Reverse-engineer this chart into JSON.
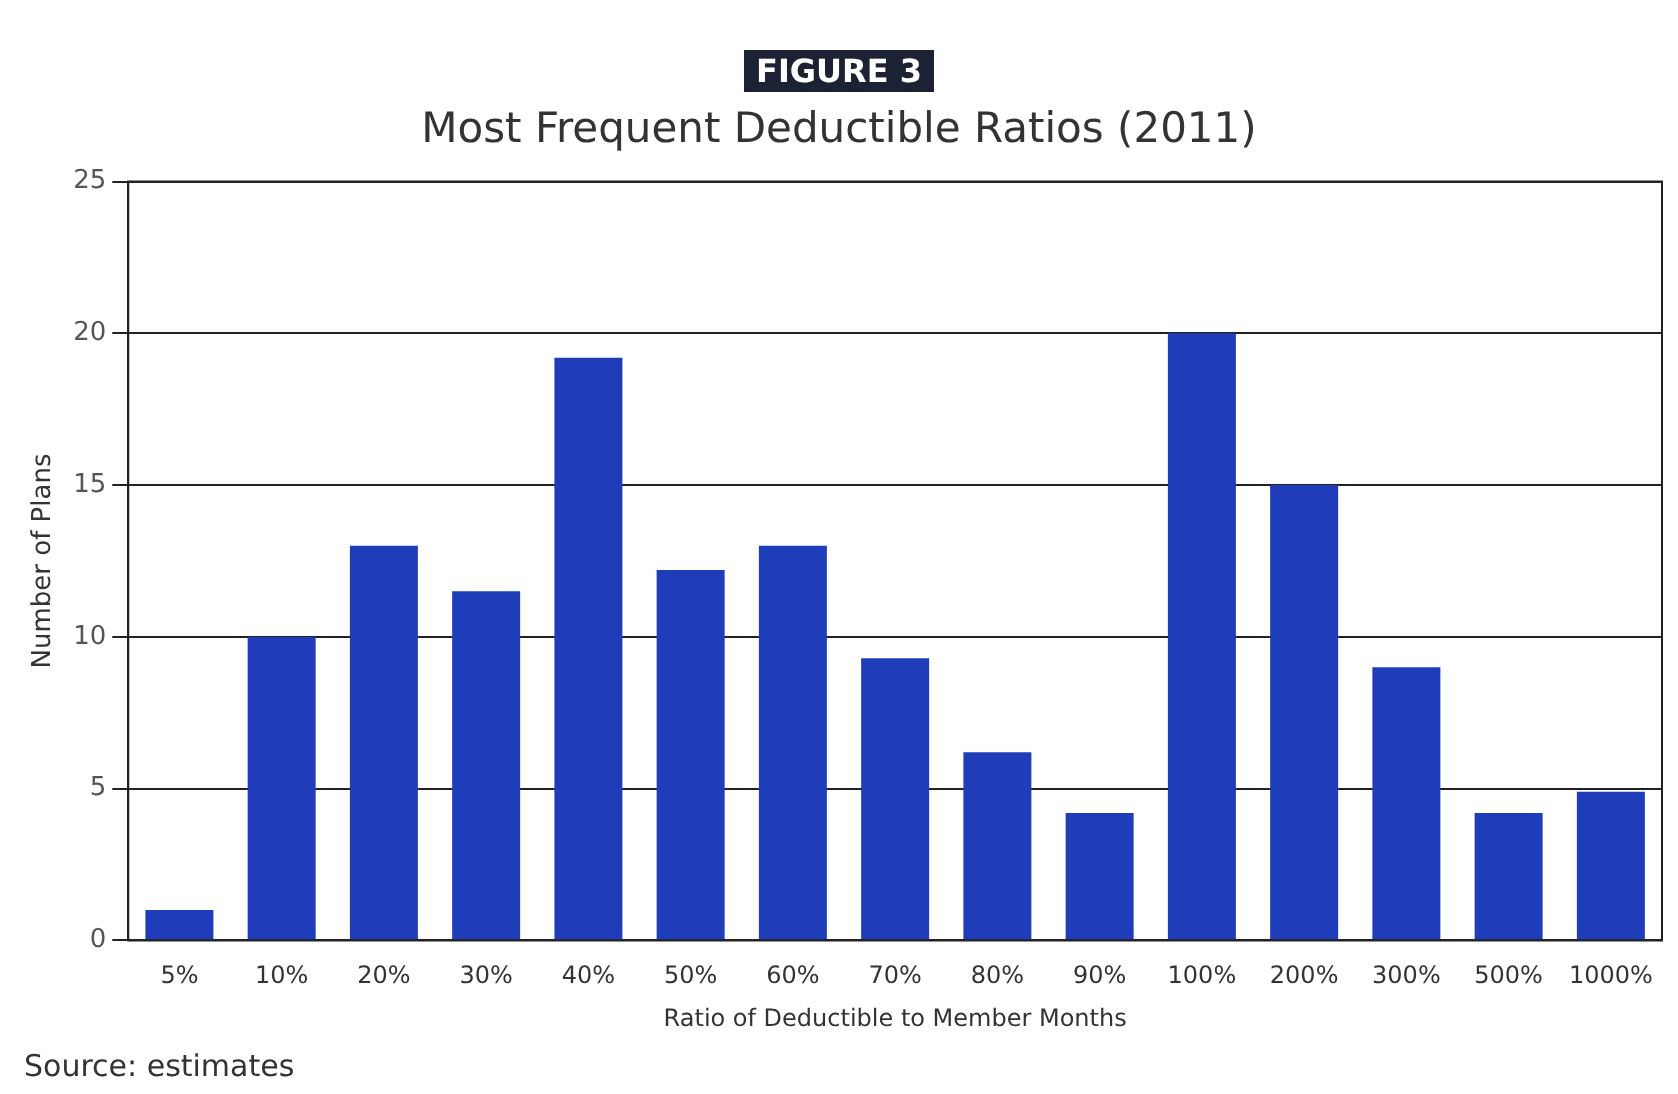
{
  "chart_data": {
    "type": "bar",
    "title": "Most Frequent Deductible Ratios (2011)",
    "xlabel": "Ratio of Deductible to Member Months",
    "ylabel": "Number of Plans",
    "annotations": [
      "FIGURE 3",
      "Source: estimates"
    ],
    "categories": [
      "5%",
      "10%",
      "20%",
      "30%",
      "40%",
      "50%",
      "60%",
      "70%",
      "80%",
      "90%",
      "100%",
      "200%",
      "300%",
      "500%",
      "1000%"
    ],
    "values": [
      1,
      10,
      13,
      11.5,
      19.2,
      12.2,
      13,
      9.3,
      6.2,
      4.2,
      20,
      15,
      9,
      4.2,
      4.9
    ],
    "color": "#1f3db8",
    "ylim": [
      0,
      25
    ],
    "yticks": [
      0,
      5,
      10,
      15,
      20,
      25
    ],
    "grid": "y",
    "legend": false
  }
}
